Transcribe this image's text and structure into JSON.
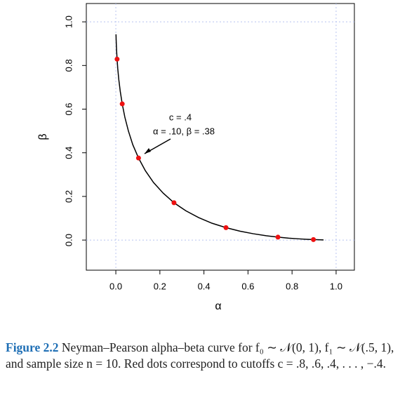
{
  "chart_data": {
    "type": "line",
    "x_label": "α",
    "y_label": "β",
    "xlim": [
      -0.134,
      1.083
    ],
    "ylim": [
      -0.138,
      1.084
    ],
    "xticks": [
      {
        "value": 0,
        "label": "0.0"
      },
      {
        "value": 0.2,
        "label": "0.2"
      },
      {
        "value": 0.4,
        "label": "0.4"
      },
      {
        "value": 0.6,
        "label": "0.6"
      },
      {
        "value": 0.8,
        "label": "0.8"
      },
      {
        "value": 1,
        "label": "1.0"
      }
    ],
    "yticks": [
      {
        "value": 0,
        "label": "0.0"
      },
      {
        "value": 0.2,
        "label": "0.2"
      },
      {
        "value": 0.4,
        "label": "0.4"
      },
      {
        "value": 0.6,
        "label": "0.6"
      },
      {
        "value": 0.8,
        "label": "0.8"
      },
      {
        "value": 1,
        "label": "1.0"
      }
    ],
    "vlines": [
      0,
      1
    ],
    "hlines": [
      0,
      1
    ],
    "ref_line_color": "#b8c4f0",
    "series": [
      {
        "type": "line",
        "color": "#000000",
        "x": [
          0.0008,
          0.0013,
          0.0022,
          0.0036,
          0.0057,
          0.0088,
          0.0134,
          0.02,
          0.029,
          0.041,
          0.057,
          0.077,
          0.103,
          0.134,
          0.171,
          0.215,
          0.264,
          0.318,
          0.376,
          0.437,
          0.5,
          0.563,
          0.624,
          0.682,
          0.736,
          0.785,
          0.829,
          0.866,
          0.897,
          0.923,
          0.943
        ],
        "values": [
          0.943,
          0.923,
          0.897,
          0.866,
          0.829,
          0.785,
          0.736,
          0.682,
          0.624,
          0.563,
          0.5,
          0.437,
          0.376,
          0.318,
          0.264,
          0.215,
          0.171,
          0.134,
          0.103,
          0.077,
          0.057,
          0.041,
          0.029,
          0.02,
          0.0134,
          0.0088,
          0.0057,
          0.0036,
          0.0022,
          0.0013,
          0.0008
        ]
      },
      {
        "type": "scatter",
        "color": "#ee1111",
        "x": [
          0.0057,
          0.029,
          0.103,
          0.264,
          0.5,
          0.736,
          0.897
        ],
        "values": [
          0.829,
          0.624,
          0.376,
          0.171,
          0.057,
          0.0134,
          0.0022
        ]
      }
    ],
    "annotation": [
      "c = .4",
      "α = .10,  β = .38"
    ]
  },
  "caption": {
    "label": "Figure 2.2",
    "text": "Neyman–Pearson alpha–beta curve for f₀ ∼ 𝒩(0, 1), f₁ ∼ 𝒩(.5, 1), and sample size n = 10. Red dots correspond to cutoffs c = .8, .6, .4, . . . , −.4."
  }
}
